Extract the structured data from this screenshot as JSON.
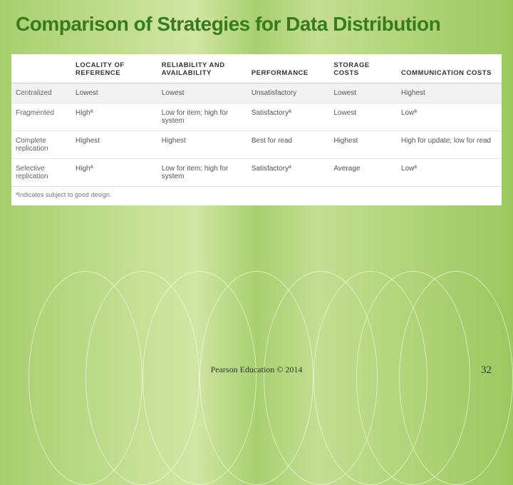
{
  "title": "Comparison of Strategies for Data Distribution",
  "columns": [
    "",
    "LOCALITY OF REFERENCE",
    "RELIABILITY AND AVAILABILITY",
    "PERFORMANCE",
    "STORAGE COSTS",
    "COMMUNICATION COSTS"
  ],
  "rows": [
    [
      "Centralized",
      "Lowest",
      "Lowest",
      "Unsatisfactory",
      "Lowest",
      "Highest"
    ],
    [
      "Fragmented",
      "Highª",
      "Low for item; high for system",
      "Satisfactoryª",
      "Lowest",
      "Lowª"
    ],
    [
      "Complete replication",
      "Highest",
      "Highest",
      "Best for read",
      "Highest",
      "High for update; low for read"
    ],
    [
      "Selective replication",
      "Highª",
      "Low for item; high for system",
      "Satisfactoryª",
      "Average",
      "Lowª"
    ]
  ],
  "footnote": "ªIndicates subject to good design.",
  "credit": "Pearson Education © 2014",
  "page": "32",
  "col_widths": [
    "80px",
    "115px",
    "120px",
    "110px",
    "90px",
    "140px"
  ]
}
